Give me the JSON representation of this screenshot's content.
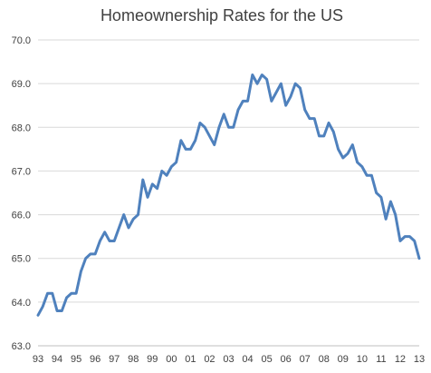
{
  "chart_data": {
    "type": "line",
    "title": "Homeownership Rates for the US",
    "xlabel": "",
    "ylabel": "",
    "ylim": [
      63.0,
      70.0
    ],
    "xlim": [
      1993.0,
      2013.0
    ],
    "grid": "horizontal",
    "legend": "none",
    "y_ticks": [
      "63.0",
      "64.0",
      "65.0",
      "66.0",
      "67.0",
      "68.0",
      "69.0",
      "70.0"
    ],
    "x_ticks": [
      "93",
      "94",
      "95",
      "96",
      "97",
      "98",
      "99",
      "00",
      "01",
      "02",
      "03",
      "04",
      "05",
      "06",
      "07",
      "08",
      "09",
      "10",
      "11",
      "12",
      "13"
    ],
    "line_color": "#4f81bd",
    "series": [
      {
        "values": [
          [
            1993.0,
            63.7
          ],
          [
            1993.25,
            63.9
          ],
          [
            1993.5,
            64.2
          ],
          [
            1993.75,
            64.2
          ],
          [
            1994.0,
            63.8
          ],
          [
            1994.25,
            63.8
          ],
          [
            1994.5,
            64.1
          ],
          [
            1994.75,
            64.2
          ],
          [
            1995.0,
            64.2
          ],
          [
            1995.25,
            64.7
          ],
          [
            1995.5,
            65.0
          ],
          [
            1995.75,
            65.1
          ],
          [
            1996.0,
            65.1
          ],
          [
            1996.25,
            65.4
          ],
          [
            1996.5,
            65.6
          ],
          [
            1996.75,
            65.4
          ],
          [
            1997.0,
            65.4
          ],
          [
            1997.25,
            65.7
          ],
          [
            1997.5,
            66.0
          ],
          [
            1997.75,
            65.7
          ],
          [
            1998.0,
            65.9
          ],
          [
            1998.25,
            66.0
          ],
          [
            1998.5,
            66.8
          ],
          [
            1998.75,
            66.4
          ],
          [
            1999.0,
            66.7
          ],
          [
            1999.25,
            66.6
          ],
          [
            1999.5,
            67.0
          ],
          [
            1999.75,
            66.9
          ],
          [
            2000.0,
            67.1
          ],
          [
            2000.25,
            67.2
          ],
          [
            2000.5,
            67.7
          ],
          [
            2000.75,
            67.5
          ],
          [
            2001.0,
            67.5
          ],
          [
            2001.25,
            67.7
          ],
          [
            2001.5,
            68.1
          ],
          [
            2001.75,
            68.0
          ],
          [
            2002.0,
            67.8
          ],
          [
            2002.25,
            67.6
          ],
          [
            2002.5,
            68.0
          ],
          [
            2002.75,
            68.3
          ],
          [
            2003.0,
            68.0
          ],
          [
            2003.25,
            68.0
          ],
          [
            2003.5,
            68.4
          ],
          [
            2003.75,
            68.6
          ],
          [
            2004.0,
            68.6
          ],
          [
            2004.25,
            69.2
          ],
          [
            2004.5,
            69.0
          ],
          [
            2004.75,
            69.2
          ],
          [
            2005.0,
            69.1
          ],
          [
            2005.25,
            68.6
          ],
          [
            2005.5,
            68.8
          ],
          [
            2005.75,
            69.0
          ],
          [
            2006.0,
            68.5
          ],
          [
            2006.25,
            68.7
          ],
          [
            2006.5,
            69.0
          ],
          [
            2006.75,
            68.9
          ],
          [
            2007.0,
            68.4
          ],
          [
            2007.25,
            68.2
          ],
          [
            2007.5,
            68.2
          ],
          [
            2007.75,
            67.8
          ],
          [
            2008.0,
            67.8
          ],
          [
            2008.25,
            68.1
          ],
          [
            2008.5,
            67.9
          ],
          [
            2008.75,
            67.5
          ],
          [
            2009.0,
            67.3
          ],
          [
            2009.25,
            67.4
          ],
          [
            2009.5,
            67.6
          ],
          [
            2009.75,
            67.2
          ],
          [
            2010.0,
            67.1
          ],
          [
            2010.25,
            66.9
          ],
          [
            2010.5,
            66.9
          ],
          [
            2010.75,
            66.5
          ],
          [
            2011.0,
            66.4
          ],
          [
            2011.25,
            65.9
          ],
          [
            2011.5,
            66.3
          ],
          [
            2011.75,
            66.0
          ],
          [
            2012.0,
            65.4
          ],
          [
            2012.25,
            65.5
          ],
          [
            2012.5,
            65.5
          ],
          [
            2012.75,
            65.4
          ],
          [
            2013.0,
            65.0
          ]
        ]
      }
    ]
  }
}
